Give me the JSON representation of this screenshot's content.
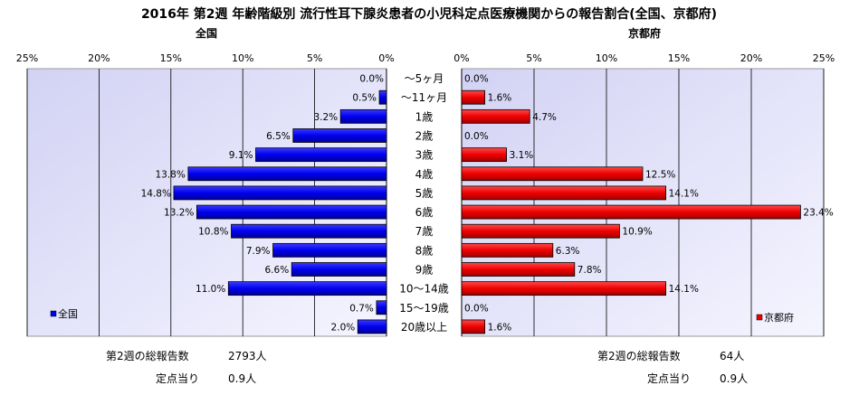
{
  "title": "2016年 第2週 年齢階級別 流行性耳下腺炎患者の小児科定点医療機関からの報告割合(全国、京都府)",
  "chart_data": {
    "type": "bar",
    "orientation": "horizontal-butterfly",
    "categories": [
      "～5ヶ月",
      "～11ヶ月",
      "1歳",
      "2歳",
      "3歳",
      "4歳",
      "5歳",
      "6歳",
      "7歳",
      "8歳",
      "9歳",
      "10～14歳",
      "15～19歳",
      "20歳以上"
    ],
    "xlim": [
      0,
      25
    ],
    "grid": true,
    "panels": [
      {
        "name": "全国",
        "side": "left",
        "color": "#0000ee",
        "legend": "全国",
        "legend_position": "bottom-left",
        "tick_labels": [
          "25%",
          "20%",
          "15%",
          "10%",
          "5%",
          "0%"
        ],
        "values": [
          0.0,
          0.5,
          3.2,
          6.5,
          9.1,
          13.8,
          14.8,
          13.2,
          10.8,
          7.9,
          6.6,
          11.0,
          0.7,
          2.0
        ],
        "value_labels": [
          "0.0%",
          "0.5%",
          "3.2%",
          "6.5%",
          "9.1%",
          "13.8%",
          "14.8%",
          "13.2%",
          "10.8%",
          "7.9%",
          "6.6%",
          "11.0%",
          "0.7%",
          "2.0%"
        ],
        "footer": {
          "total_label": "第2週の総報告数",
          "total_value": "2793人",
          "per_site_label": "定点当り",
          "per_site_value": "0.9人"
        }
      },
      {
        "name": "京都府",
        "side": "right",
        "color": "#ee0000",
        "legend": "京都府",
        "legend_position": "bottom-right",
        "tick_labels": [
          "0%",
          "5%",
          "10%",
          "15%",
          "20%",
          "25%"
        ],
        "values": [
          0.0,
          1.6,
          4.7,
          0.0,
          3.1,
          12.5,
          14.1,
          23.4,
          10.9,
          6.3,
          7.8,
          14.1,
          0.0,
          1.6
        ],
        "value_labels": [
          "0.0%",
          "1.6%",
          "4.7%",
          "0.0%",
          "3.1%",
          "12.5%",
          "14.1%",
          "23.4%",
          "10.9%",
          "6.3%",
          "7.8%",
          "14.1%",
          "0.0%",
          "1.6%"
        ],
        "footer": {
          "total_label": "第2週の総報告数",
          "total_value": "64人",
          "per_site_label": "定点当り",
          "per_site_value": "0.9人"
        }
      }
    ]
  }
}
